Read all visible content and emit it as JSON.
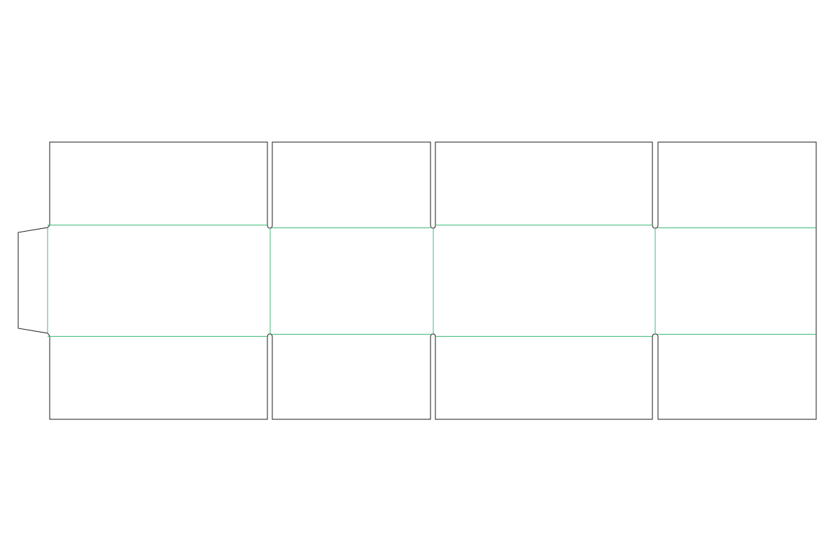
{
  "diagram": {
    "type": "box-dieline",
    "colors": {
      "background": "#ffffff",
      "cut_line": "#1a1a1a",
      "fold_line": "#3cb878"
    },
    "panels": [
      "panel-1",
      "panel-2",
      "panel-3",
      "panel-4"
    ],
    "has_glue_flap": true
  }
}
